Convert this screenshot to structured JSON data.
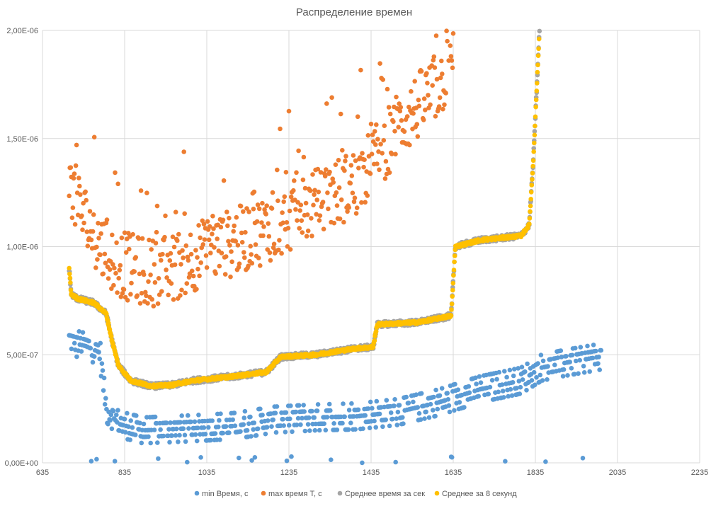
{
  "chart_data": {
    "type": "scatter",
    "title": "Распределение времен",
    "xlabel": "",
    "ylabel": "",
    "xlim": [
      635,
      2235
    ],
    "ylim": [
      0,
      2e-06
    ],
    "x_ticks": [
      "635",
      "835",
      "1035",
      "1235",
      "1435",
      "1635",
      "1835",
      "2035",
      "2235"
    ],
    "y_ticks": [
      "0,00E+00",
      "5,00E-07",
      "1,00E-06",
      "1,50E-06",
      "2,00E-06"
    ],
    "grid": true,
    "legend_position": "bottom",
    "series": [
      {
        "name": "min Время, с",
        "color": "#5B9BD5",
        "trend": [
          [
            700,
            5.6e-07
          ],
          [
            740,
            5.4e-07
          ],
          [
            775,
            5.1e-07
          ],
          [
            790,
            2.5e-07
          ],
          [
            820,
            1.8e-07
          ],
          [
            880,
            1.5e-07
          ],
          [
            1000,
            1.6e-07
          ],
          [
            1100,
            1.7e-07
          ],
          [
            1200,
            2e-07
          ],
          [
            1300,
            2.1e-07
          ],
          [
            1400,
            2.15e-07
          ],
          [
            1500,
            2.35e-07
          ],
          [
            1600,
            2.8e-07
          ],
          [
            1700,
            3.4e-07
          ],
          [
            1800,
            3.8e-07
          ],
          [
            1850,
            4.4e-07
          ],
          [
            1900,
            4.6e-07
          ],
          [
            1990,
            4.9e-07
          ]
        ],
        "spread": 6e-08,
        "x_range": [
          700,
          1995
        ],
        "count": 700
      },
      {
        "name": "max время T, с",
        "color": "#ED7D31",
        "trend": [
          [
            700,
            1.3e-06
          ],
          [
            720,
            1.2e-06
          ],
          [
            760,
            1.05e-06
          ],
          [
            800,
            9.5e-07
          ],
          [
            850,
            9e-07
          ],
          [
            900,
            8.8e-07
          ],
          [
            950,
            9e-07
          ],
          [
            1000,
            9.5e-07
          ],
          [
            1100,
            1.02e-06
          ],
          [
            1200,
            1.1e-06
          ],
          [
            1300,
            1.2e-06
          ],
          [
            1400,
            1.3e-06
          ],
          [
            1500,
            1.55e-06
          ],
          [
            1600,
            1.75e-06
          ],
          [
            1635,
            1.85e-06
          ]
        ],
        "spread": 1.6e-07,
        "x_range": [
          700,
          1635
        ],
        "count": 520
      },
      {
        "name": "Среднее время за сек",
        "color": "#A5A5A5",
        "trend": [
          [
            700,
            9e-07
          ],
          [
            705,
            7.8e-07
          ],
          [
            720,
            7.6e-07
          ],
          [
            760,
            7.4e-07
          ],
          [
            790,
            6.9e-07
          ],
          [
            805,
            5.6e-07
          ],
          [
            820,
            4.5e-07
          ],
          [
            850,
            3.8e-07
          ],
          [
            900,
            3.55e-07
          ],
          [
            950,
            3.6e-07
          ],
          [
            1000,
            3.8e-07
          ],
          [
            1100,
            4e-07
          ],
          [
            1180,
            4.2e-07
          ],
          [
            1215,
            4.9e-07
          ],
          [
            1300,
            5e-07
          ],
          [
            1400,
            5.3e-07
          ],
          [
            1440,
            5.35e-07
          ],
          [
            1450,
            6.4e-07
          ],
          [
            1550,
            6.5e-07
          ],
          [
            1630,
            6.8e-07
          ],
          [
            1640,
            1e-06
          ],
          [
            1700,
            1.03e-06
          ],
          [
            1800,
            1.05e-06
          ],
          [
            1820,
            1.1e-06
          ],
          [
            1830,
            1.4e-06
          ],
          [
            1845,
            2e-06
          ]
        ],
        "spread": 1.3e-08,
        "x_range": [
          700,
          1845
        ],
        "count": 1150
      },
      {
        "name": "Среднее за 8 секунд",
        "color": "#FFC000",
        "trend": [
          [
            700,
            9e-07
          ],
          [
            705,
            7.8e-07
          ],
          [
            720,
            7.6e-07
          ],
          [
            760,
            7.4e-07
          ],
          [
            790,
            6.9e-07
          ],
          [
            805,
            5.6e-07
          ],
          [
            820,
            4.5e-07
          ],
          [
            850,
            3.8e-07
          ],
          [
            900,
            3.55e-07
          ],
          [
            950,
            3.6e-07
          ],
          [
            1000,
            3.8e-07
          ],
          [
            1100,
            4e-07
          ],
          [
            1180,
            4.2e-07
          ],
          [
            1215,
            4.9e-07
          ],
          [
            1300,
            5e-07
          ],
          [
            1400,
            5.3e-07
          ],
          [
            1440,
            5.35e-07
          ],
          [
            1450,
            6.4e-07
          ],
          [
            1550,
            6.5e-07
          ],
          [
            1630,
            6.8e-07
          ],
          [
            1640,
            1e-06
          ],
          [
            1700,
            1.03e-06
          ],
          [
            1800,
            1.05e-06
          ],
          [
            1820,
            1.1e-06
          ],
          [
            1830,
            1.4e-06
          ],
          [
            1845,
            2e-06
          ]
        ],
        "spread": 6e-09,
        "x_range": [
          700,
          1845
        ],
        "count": 1150
      }
    ]
  }
}
